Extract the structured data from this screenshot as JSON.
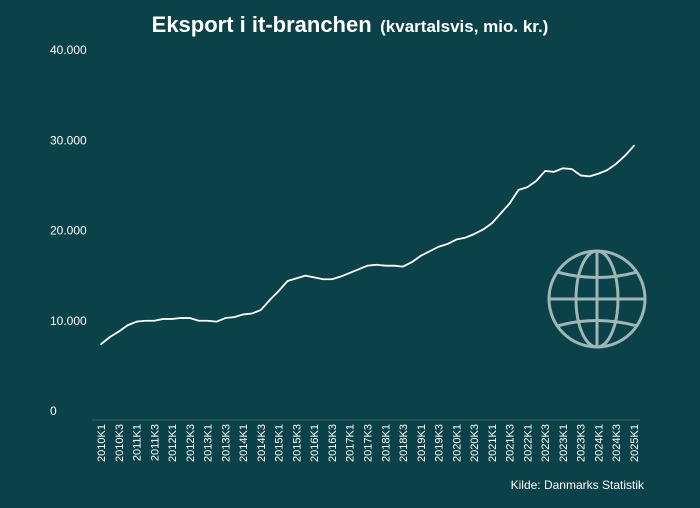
{
  "title": "Eksport i it-branchen",
  "subtitle": "(kvartalsvis, mio. kr.)",
  "source": "Kilde: Danmarks Statistik",
  "colors": {
    "background": "#0b4148",
    "line": "#ffffff",
    "icon": "#9fb6b8"
  },
  "icon": "globe-icon",
  "chart_data": {
    "type": "line",
    "title": "Eksport i it-branchen",
    "xlabel": "",
    "ylabel": "",
    "ylim": [
      0,
      40000
    ],
    "yticks": [
      {
        "value": 0,
        "label": "0"
      },
      {
        "value": 10000,
        "label": "10.000"
      },
      {
        "value": 20000,
        "label": "20.000"
      },
      {
        "value": 30000,
        "label": "30.000"
      },
      {
        "value": 40000,
        "label": "40.000"
      }
    ],
    "xtick_labels": [
      "2010K1",
      "2010K3",
      "2011K1",
      "2011K3",
      "2012K1",
      "2012K3",
      "2013K1",
      "2013K3",
      "2014K1",
      "2014K3",
      "2015K1",
      "2015K3",
      "2016K1",
      "2016K3",
      "2017K1",
      "2017K3",
      "2018K1",
      "2018K3",
      "2019K1",
      "2019K3",
      "2020K1",
      "2020K3",
      "2021K1",
      "2021K3",
      "2022K1",
      "2022K3",
      "2023K1",
      "2023K3",
      "2024K1",
      "2024K3",
      "2025K1"
    ],
    "grid": false,
    "series": [
      {
        "x": [
          "2010K1",
          "2010K2",
          "2010K3",
          "2010K4",
          "2011K1",
          "2011K2",
          "2011K3",
          "2011K4",
          "2012K1",
          "2012K2",
          "2012K3",
          "2012K4",
          "2013K1",
          "2013K2",
          "2013K3",
          "2013K4",
          "2014K1",
          "2014K2",
          "2014K3",
          "2014K4",
          "2015K1",
          "2015K2",
          "2015K3",
          "2015K4",
          "2016K1",
          "2016K2",
          "2016K3",
          "2016K4",
          "2017K1",
          "2017K2",
          "2017K3",
          "2017K4",
          "2018K1",
          "2018K2",
          "2018K3",
          "2018K4",
          "2019K1",
          "2019K2",
          "2019K3",
          "2019K4",
          "2020K1",
          "2020K2",
          "2020K3",
          "2020K4",
          "2021K1",
          "2021K2",
          "2021K3",
          "2021K4",
          "2022K1",
          "2022K2",
          "2022K3",
          "2022K4",
          "2023K1",
          "2023K2",
          "2023K3",
          "2023K4",
          "2024K1",
          "2024K2",
          "2024K3",
          "2024K4",
          "2025K1"
        ],
        "values": [
          7400,
          8200,
          8800,
          9500,
          9900,
          10000,
          10000,
          10200,
          10200,
          10300,
          10300,
          10000,
          10000,
          9900,
          10300,
          10400,
          10700,
          10800,
          11200,
          12300,
          13300,
          14400,
          14700,
          15000,
          14800,
          14600,
          14600,
          14900,
          15300,
          15700,
          16100,
          16200,
          16100,
          16100,
          16000,
          16500,
          17200,
          17700,
          18200,
          18500,
          19000,
          19200,
          19600,
          20100,
          20800,
          21900,
          23000,
          24500,
          24800,
          25500,
          26600,
          26500,
          26900,
          26800,
          26100,
          26000,
          26300,
          26700,
          27400,
          28300,
          29400
        ]
      }
    ]
  }
}
